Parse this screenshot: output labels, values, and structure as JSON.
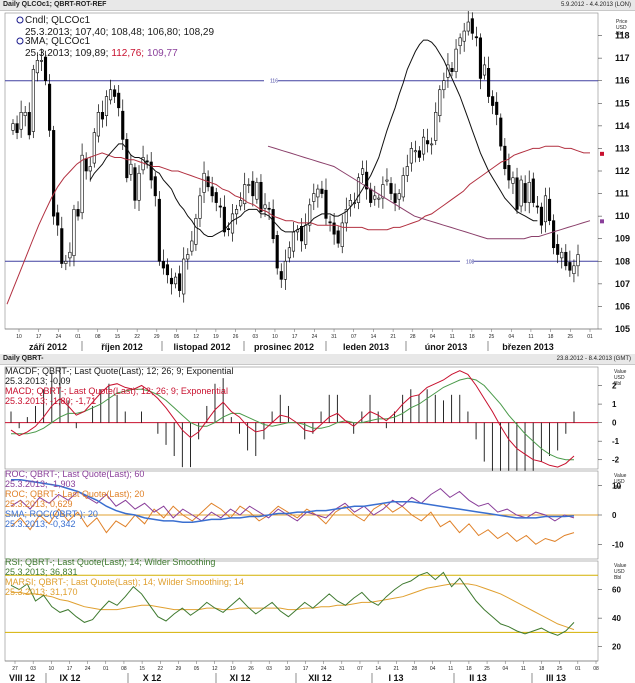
{
  "window1": {
    "title": "Daily QLCOc1; QBRT-ROT-REF",
    "range": "5.9.2012 - 4.4.2013 (LON)",
    "axis_unit": [
      "Price",
      "USD",
      "Bbl"
    ],
    "legend1": "Cndl; QLCOc1",
    "legend1_values": "25.3.2013; 107,40; 108,48; 106,80; 108,29",
    "legend2": "3MA; QLCOc1",
    "legend2_date": "25.3.2013; 109,89;",
    "legend2_v2": "112,76;",
    "legend2_v3": "109,77",
    "hline_high_label": "116",
    "hline_low_label": "108"
  },
  "window2": {
    "title": "Daily QBRT-",
    "range": "23.8.2012 - 8.4.2013 (GMT)",
    "axis_unit": [
      "Value",
      "USD",
      "Bbl"
    ],
    "macd_legend1": "MACDF; QBRT-; Last Quote(Last);  12; 26; 9; Exponential",
    "macd_values1": "25.3.2013; -0,09",
    "macd_legend2": "MACD; QBRT-; Last Quote(Last);  12; 26; 9; Exponential",
    "macd_values2": "25.3.2013; -1,80; -1,71",
    "roc_legend1": "ROC; QBRT-; Last Quote(Last);  60",
    "roc_values1": "25.3.2013; -1,903",
    "roc_legend2": "ROC; QBRT-; Last Quote(Last);  20",
    "roc_values2": "25.3.2013; 0,629",
    "roc_legend3": "SMA; ROC(QBRT-); 20",
    "roc_values3": "25.3.2013; -0,342",
    "rsi_legend1": "RSI; QBRT-; Last Quote(Last);  14; Wilder Smoothing",
    "rsi_values1": "25.3.2013; 36,831",
    "rsi_legend2": "MARSI; QBRT-; Last Quote(Last);  14; Wilder Smoothing; 14",
    "rsi_values2": "25.3.2013; 31,170"
  },
  "colors": {
    "navy": "#1a1a8c",
    "price_red": "#c8102e",
    "ma_red": "#b23040",
    "macd_green": "#4a9a4a",
    "roc_purple": "#8a3f9a",
    "roc_orange": "#e0822a",
    "sma_blue": "#3a6fd0",
    "rsi_green": "#3f7a30",
    "marsi_orange": "#e0a030",
    "hline_blue": "#4040a0"
  },
  "chart_data": [
    {
      "type": "candlestick",
      "ylim": [
        105,
        119
      ],
      "yticks": [
        105,
        106,
        107,
        108,
        109,
        110,
        111,
        112,
        113,
        114,
        115,
        116,
        117,
        118
      ],
      "x_day_ticks": [
        "10",
        "17",
        "24",
        "01",
        "08",
        "15",
        "22",
        "29",
        "05",
        "12",
        "19",
        "26",
        "03",
        "10",
        "17",
        "24",
        "31",
        "07",
        "14",
        "21",
        "28",
        "04",
        "11",
        "18",
        "25",
        "04",
        "11",
        "18",
        "25",
        "01"
      ],
      "month_labels": [
        "září 2012",
        "říjen 2012",
        "listopad 2012",
        "prosinec 2012",
        "leden 2013",
        "únor 2013",
        "březen 2013"
      ],
      "horizontal_lines": [
        116,
        108
      ],
      "closes": [
        114.1,
        113.7,
        114.6,
        114.6,
        113.6,
        116.5,
        116.9,
        116.9,
        116.0,
        113.8,
        110.0,
        109.6,
        107.9,
        108.0,
        108.4,
        110.3,
        110.0,
        112.7,
        112.0,
        112.2,
        113.7,
        114.6,
        114.3,
        115.3,
        115.6,
        115.3,
        114.8,
        113.4,
        111.7,
        112.3,
        110.7,
        111.9,
        112.6,
        112.4,
        111.6,
        110.9,
        108.0,
        107.7,
        107.4,
        107.0,
        107.3,
        106.7,
        108.1,
        108.3,
        108.9,
        109.9,
        110.9,
        111.9,
        111.3,
        110.9,
        110.6,
        110.4,
        109.3,
        109.4,
        110.1,
        110.3,
        110.7,
        111.4,
        111.4,
        110.9,
        111.5,
        110.2,
        110.5,
        110.3,
        109.0,
        107.7,
        107.2,
        108.0,
        108.6,
        109.3,
        109.4,
        108.9,
        109.6,
        110.5,
        111.0,
        111.2,
        111.0,
        109.9,
        109.7,
        109.2,
        108.8,
        109.7,
        110.3,
        110.7,
        110.6,
        111.7,
        112.1,
        111.2,
        110.6,
        110.9,
        110.8,
        111.4,
        111.6,
        111.0,
        110.6,
        111.0,
        111.8,
        112.2,
        113.0,
        112.9,
        112.6,
        113.5,
        113.2,
        113.2,
        114.6,
        115.6,
        116.0,
        116.7,
        116.4,
        117.4,
        117.9,
        118.2,
        118.6,
        118.1,
        117.9,
        116.1,
        116.7,
        115.3,
        114.9,
        114.5,
        113.1,
        112.1,
        111.6,
        111.7,
        110.3,
        111.6,
        110.6,
        111.5,
        110.6,
        110.4,
        109.6,
        110.9,
        109.8,
        108.6,
        108.3,
        108.4,
        107.8,
        107.6,
        107.8,
        108.3
      ],
      "ma_black": [
        null,
        null,
        null,
        null,
        null,
        null,
        null,
        null,
        null,
        null,
        null,
        null,
        null,
        null,
        null,
        null,
        null,
        null,
        null,
        111.6,
        111.9,
        112.1,
        112.3,
        112.6,
        112.8,
        113.0,
        113.2,
        113.2,
        113.0,
        112.7,
        112.6,
        112.6,
        112.5,
        112.3,
        112.2,
        112.0,
        111.9,
        111.6,
        111.4,
        111.2,
        110.8,
        110.5,
        110.3,
        110.0,
        109.8,
        109.5,
        109.4,
        109.2,
        109.1,
        109.1,
        109.2,
        109.3,
        109.4,
        109.6,
        109.8,
        109.9,
        110.0,
        110.2,
        110.3,
        110.3,
        110.3,
        110.1,
        110.1,
        110.0,
        109.8,
        109.6,
        109.4,
        109.3,
        109.3,
        109.3,
        109.4,
        109.5,
        109.6,
        109.7,
        109.9,
        110.0,
        110.1,
        110.1,
        110.1,
        110.0,
        110.0,
        110.1,
        110.2,
        110.4,
        110.6,
        110.9,
        111.2,
        111.5,
        111.8,
        112.2,
        112.6,
        113.2,
        113.8,
        114.3,
        114.8,
        115.4,
        115.9,
        116.5,
        116.9,
        117.3,
        117.6,
        117.8,
        117.8,
        117.7,
        117.5,
        117.2,
        116.9,
        116.5,
        116.1,
        115.7,
        115.3,
        114.8,
        114.3,
        113.8,
        113.3,
        112.8,
        112.4,
        112.0,
        111.7,
        111.4,
        111.1,
        110.8,
        110.6,
        110.4,
        110.2,
        110.1,
        110.0,
        109.9,
        109.8,
        109.8
      ],
      "ma_red": [
        106.1,
        106.8,
        107.5,
        108.2,
        108.9,
        109.6,
        110.2,
        110.8,
        111.3,
        111.7,
        112.0,
        112.3,
        112.5,
        112.6,
        112.7,
        112.8,
        112.7,
        112.6,
        112.6,
        112.5,
        112.5,
        112.4,
        112.3,
        112.2,
        112.2,
        112.1,
        112.0,
        112.0,
        111.9,
        111.8,
        111.7,
        111.6,
        111.5,
        111.4,
        111.2,
        111.1,
        110.9,
        110.8,
        110.6,
        110.5,
        110.3,
        110.2,
        110.0,
        109.9,
        109.8,
        109.8,
        109.7,
        109.7,
        109.7,
        109.6,
        109.6,
        109.6,
        109.6,
        109.5,
        109.5,
        109.5,
        109.5,
        109.4,
        109.4,
        109.4,
        109.4,
        109.5,
        109.5,
        109.6,
        109.7,
        109.8,
        110.0,
        110.1,
        110.3,
        110.5,
        110.7,
        110.9,
        111.1,
        111.4,
        111.6,
        111.8,
        112.0,
        112.2,
        112.4,
        112.5,
        112.7,
        112.8,
        112.9,
        113.0,
        113.0,
        113.1,
        113.1,
        113.1,
        113.0,
        113.0,
        112.9,
        112.8,
        112.8
      ],
      "ma_violet": [
        113.1,
        113.0,
        112.9,
        112.8,
        112.7,
        112.6,
        112.5,
        112.4,
        112.3,
        112.2,
        112.0,
        111.8,
        111.6,
        111.4,
        111.2,
        111.0,
        110.8,
        110.6,
        110.4,
        110.2,
        110.0,
        109.9,
        109.8,
        109.7,
        109.6,
        109.5,
        109.4,
        109.3,
        109.2,
        109.1,
        109.0,
        109.0,
        109.0,
        109.0,
        109.0,
        109.0,
        109.1,
        109.1,
        109.2,
        109.3,
        109.4,
        109.5,
        109.6,
        109.7,
        109.8
      ]
    },
    {
      "type": "line",
      "name_hint": "MACD panel",
      "ylim": [
        -2.5,
        3
      ],
      "yticks": [
        -2,
        -1,
        0,
        1,
        2
      ],
      "macd": [
        -0.4,
        -0.7,
        -0.5,
        -0.2,
        0.3,
        0.9,
        1.3,
        0.9,
        0.4,
        0.6,
        1.1,
        1.6,
        2.0,
        2.1,
        1.9,
        1.8,
        2.0,
        1.7,
        1.3,
        0.8,
        0.2,
        -0.4,
        -0.8,
        -0.5,
        0.1,
        0.7,
        1.1,
        0.6,
        0.3,
        -0.2,
        -0.5,
        -0.4,
        0.0,
        0.4,
        0.3,
        0.0,
        -0.4,
        -0.5,
        -0.1,
        0.3,
        0.5,
        0.1,
        -0.2,
        0.2,
        0.6,
        0.4,
        0.1,
        0.5,
        1.0,
        1.4,
        1.5,
        1.9,
        2.1,
        2.3,
        2.6,
        2.8,
        2.6,
        2.0,
        1.3,
        0.6,
        -0.2,
        -0.9,
        -1.4,
        -1.7,
        -2.0,
        -2.1,
        -2.3,
        -2.4,
        -2.2,
        -1.8
      ],
      "signal": [
        -0.6,
        -0.6,
        -0.6,
        -0.5,
        -0.3,
        0.0,
        0.3,
        0.5,
        0.5,
        0.6,
        0.8,
        1.0,
        1.3,
        1.6,
        1.7,
        1.8,
        1.8,
        1.7,
        1.5,
        1.2,
        0.8,
        0.4,
        0.0,
        -0.2,
        -0.2,
        0.0,
        0.3,
        0.5,
        0.5,
        0.3,
        0.1,
        -0.1,
        -0.2,
        -0.1,
        0.0,
        0.0,
        -0.1,
        -0.3,
        -0.3,
        -0.2,
        0.0,
        0.1,
        0.0,
        0.0,
        0.1,
        0.2,
        0.2,
        0.3,
        0.5,
        0.8,
        1.0,
        1.3,
        1.6,
        1.9,
        2.1,
        2.3,
        2.4,
        2.3,
        2.0,
        1.5,
        1.0,
        0.4,
        -0.1,
        -0.6,
        -1.0,
        -1.4,
        -1.7,
        -1.9,
        -2.0,
        -2.0
      ]
    },
    {
      "type": "line",
      "name_hint": "ROC panel",
      "ylim": [
        -15,
        15
      ],
      "yticks": [
        -10,
        0,
        10
      ],
      "roc60": [
        3,
        5,
        2,
        6,
        4,
        7,
        5,
        8,
        6,
        4,
        7,
        3,
        5,
        2,
        4,
        1,
        3,
        -1,
        2,
        0,
        -2,
        1,
        -1,
        2,
        0,
        3,
        1,
        -1,
        2,
        0,
        -2,
        1,
        0,
        -1,
        2,
        4,
        1,
        3,
        0,
        2,
        5,
        3,
        6,
        4,
        7,
        9,
        6,
        8,
        5,
        3,
        4,
        1,
        2,
        0,
        -1,
        1,
        0,
        -2,
        0,
        -1
      ],
      "roc20": [
        -4,
        -1,
        -5,
        0,
        -3,
        2,
        -2,
        1,
        -4,
        -1,
        -6,
        -2,
        -4,
        0,
        -3,
        2,
        -1,
        3,
        0,
        -2,
        1,
        4,
        2,
        -1,
        3,
        1,
        -2,
        0,
        3,
        1,
        -1,
        2,
        0,
        -3,
        1,
        3,
        0,
        -2,
        2,
        4,
        1,
        3,
        0,
        -2,
        1,
        -4,
        -2,
        -6,
        -3,
        -7,
        -5,
        -8,
        -6,
        -9,
        -7,
        -10,
        -8,
        -9,
        -7,
        -6
      ],
      "sma_roc": [
        12,
        12,
        11.5,
        11,
        10.5,
        10,
        9,
        8,
        6.5,
        5,
        3,
        1.5,
        0.5,
        0,
        -1,
        -1.5,
        -2,
        -2,
        -2.5,
        -2.5,
        -2,
        -1.5,
        -1.5,
        -1,
        -1,
        -0.5,
        -0.5,
        0,
        0.5,
        0.5,
        1,
        1,
        1.5,
        1.5,
        2,
        2.5,
        3,
        3,
        3.5,
        4,
        4.5,
        4.5,
        4.5,
        4,
        3.5,
        3,
        2.5,
        2,
        1.5,
        1,
        0.5,
        0,
        -0.5,
        -1,
        -1,
        -1,
        -0.5,
        -0.5,
        -0.5,
        -0.3
      ]
    },
    {
      "type": "line",
      "name_hint": "RSI panel",
      "ylim": [
        10,
        80
      ],
      "yticks": [
        20,
        40,
        60
      ],
      "levels": [
        70,
        30
      ],
      "rsi": [
        63,
        60,
        64,
        52,
        56,
        48,
        44,
        46,
        41,
        37,
        39,
        46,
        52,
        49,
        55,
        62,
        57,
        49,
        41,
        38,
        43,
        47,
        42,
        46,
        51,
        47,
        44,
        49,
        54,
        48,
        43,
        47,
        51,
        45,
        41,
        46,
        51,
        47,
        52,
        57,
        52,
        49,
        54,
        58,
        52,
        49,
        55,
        60,
        64,
        66,
        70,
        72,
        67,
        72,
        62,
        68,
        60,
        52,
        46,
        41,
        36,
        34,
        31,
        29,
        31,
        33,
        30,
        28,
        31,
        37
      ],
      "marsi": [
        58,
        58,
        57,
        57,
        56,
        55,
        53,
        52,
        50,
        48,
        47,
        46,
        46,
        46,
        47,
        48,
        49,
        49,
        48,
        47,
        46,
        46,
        46,
        46,
        47,
        47,
        46,
        46,
        47,
        47,
        47,
        47,
        47,
        47,
        46,
        46,
        47,
        47,
        48,
        48,
        49,
        49,
        50,
        51,
        51,
        52,
        53,
        54,
        55,
        57,
        59,
        61,
        62,
        63,
        64,
        64,
        64,
        63,
        61,
        59,
        57,
        54,
        51,
        48,
        45,
        42,
        39,
        36,
        34,
        32
      ]
    }
  ]
}
